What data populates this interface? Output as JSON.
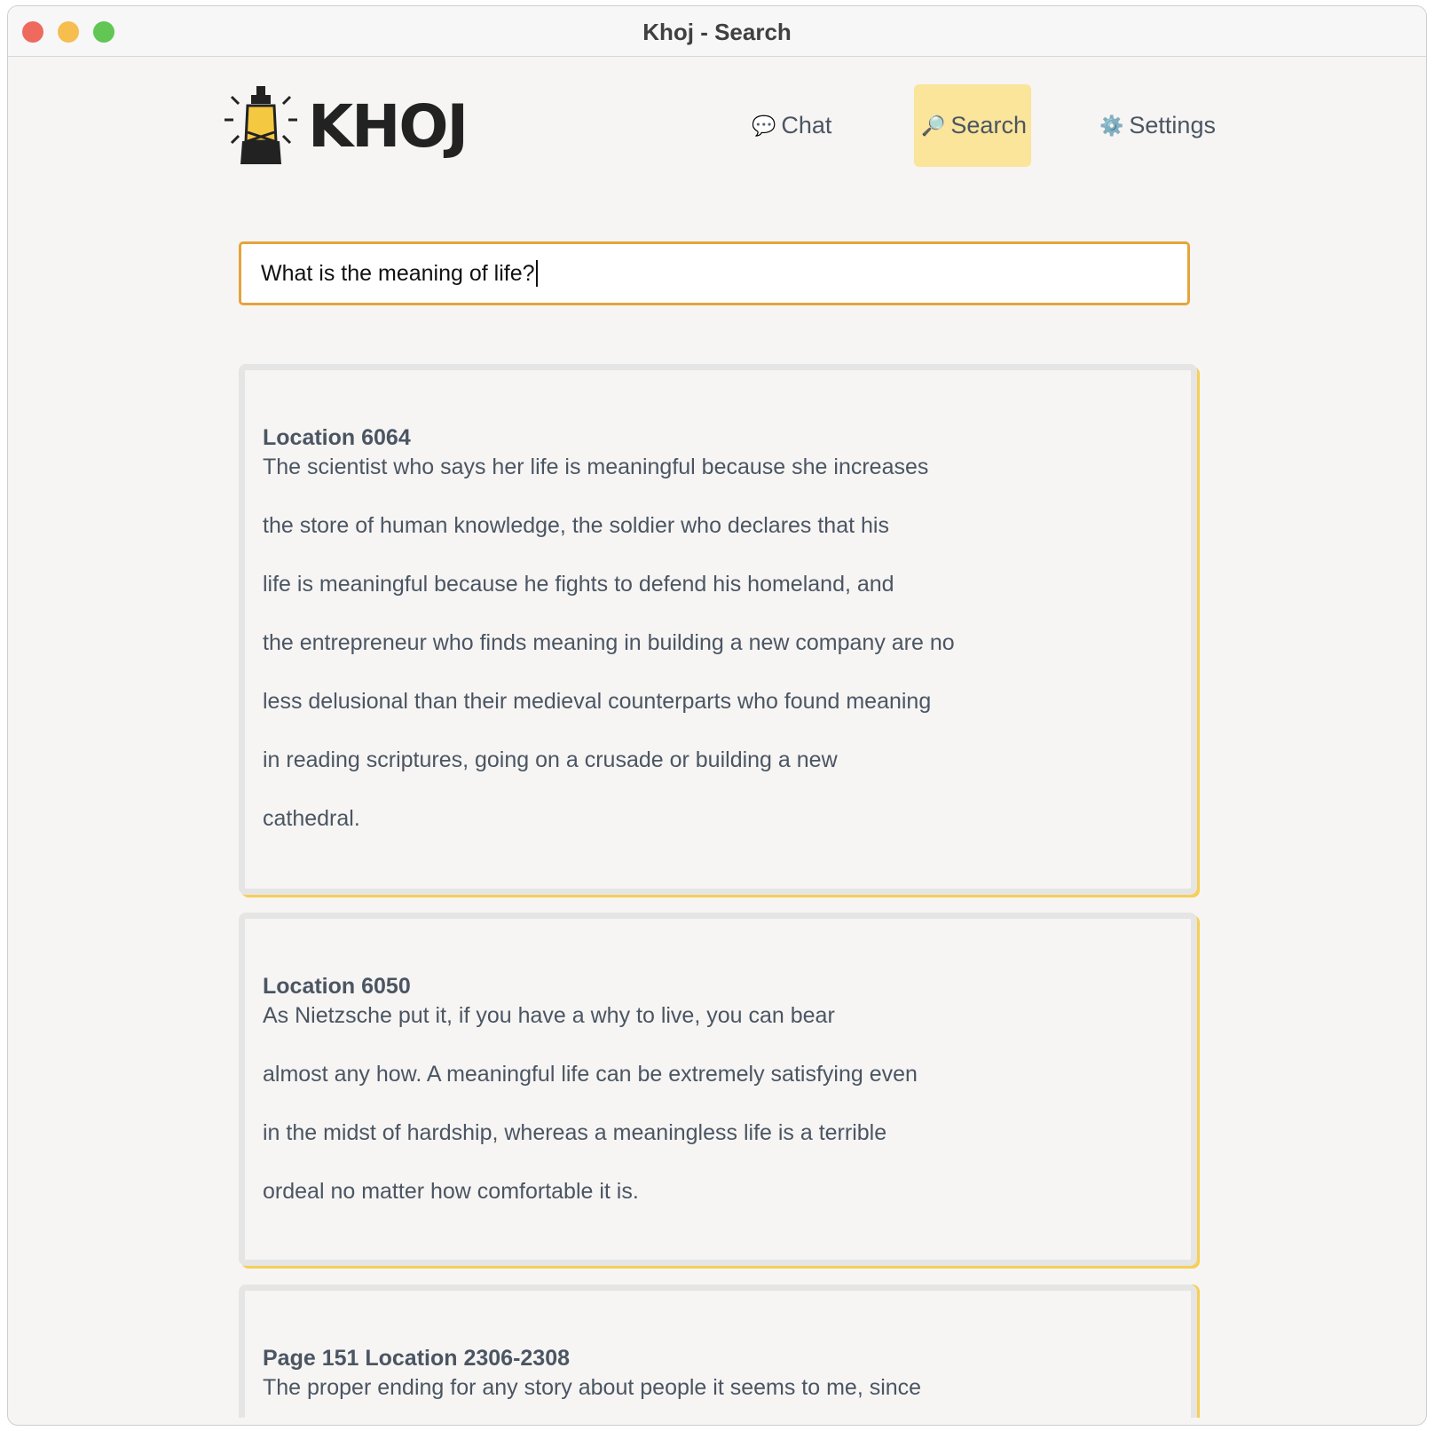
{
  "window": {
    "title": "Khoj - Search",
    "traffic_lights": {
      "close": "#ee6a5f",
      "minimize": "#f5be4f",
      "zoom": "#62c655"
    }
  },
  "header": {
    "logo_text": "KHOJ",
    "nav": [
      {
        "label": "Chat",
        "icon": "speech-bubble-icon"
      },
      {
        "label": "Search",
        "icon": "magnifier-icon",
        "active": true
      },
      {
        "label": "Settings",
        "icon": "gear-icon"
      }
    ]
  },
  "search": {
    "value": "What is the meaning of life?"
  },
  "colors": {
    "accent": "#fae59a",
    "input_border": "#e5a43c",
    "card_shadow": "#f6cf55"
  },
  "results": [
    {
      "heading": "Location 6064",
      "lines": [
        "The scientist who says her life is meaningful because she increases",
        "the store of human knowledge, the soldier who declares that his",
        "life is meaningful because he fights to defend his homeland, and",
        "the entrepreneur who finds meaning in building a new company are no",
        "less delusional than their medieval counterparts who found meaning",
        "in reading scriptures, going on a crusade or building a new",
        "cathedral."
      ]
    },
    {
      "heading": "Location 6050",
      "lines": [
        "As Nietzsche put it, if you have a why to live, you can bear",
        "almost any how. A meaningful life can be extremely satisfying even",
        "in the midst of hardship, whereas a meaningless life is a terrible",
        "ordeal no matter how comfortable it is."
      ]
    },
    {
      "heading": "Page 151 Location 2306-2308",
      "lines": [
        "The proper ending for any story about people it seems to me, since"
      ]
    }
  ]
}
